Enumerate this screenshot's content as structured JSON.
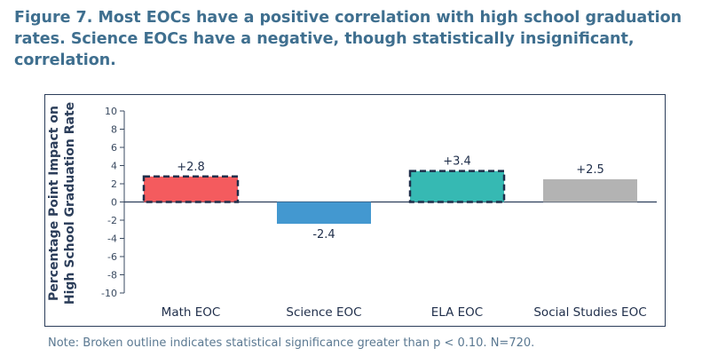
{
  "title_lines": [
    "Figure 7. Most EOCs have a positive correlation with high school graduation",
    "rates. Science EOCs have a negative, though statistically insignificant,",
    "correlation."
  ],
  "note": "Note: Broken outline indicates statistical significance greater than p < 0.10. N=720.",
  "chart_data": {
    "type": "bar",
    "title": "Figure 7. Most EOCs have a positive correlation with high school graduation rates. Science EOCs have a negative, though statistically insignificant, correlation.",
    "ylabel_lines": [
      "Percentage Point Impact on",
      "High School Graduation Rate"
    ],
    "xlabel": "",
    "categories": [
      "Math EOC",
      "Science EOC",
      "ELA EOC",
      "Social Studies EOC"
    ],
    "values": [
      2.8,
      -2.4,
      3.4,
      2.5
    ],
    "data_labels": [
      "+2.8",
      "-2.4",
      "+3.4",
      "+2.5"
    ],
    "colors": [
      "#f45b5e",
      "#4398d0",
      "#36b9b3",
      "#b3b3b3"
    ],
    "significant": [
      true,
      false,
      true,
      false
    ],
    "ylim": [
      -10,
      10
    ],
    "yticks": [
      10,
      8,
      6,
      4,
      2,
      0,
      -2,
      -4,
      -6,
      -8,
      -10
    ],
    "grid": false,
    "legend": "none"
  }
}
